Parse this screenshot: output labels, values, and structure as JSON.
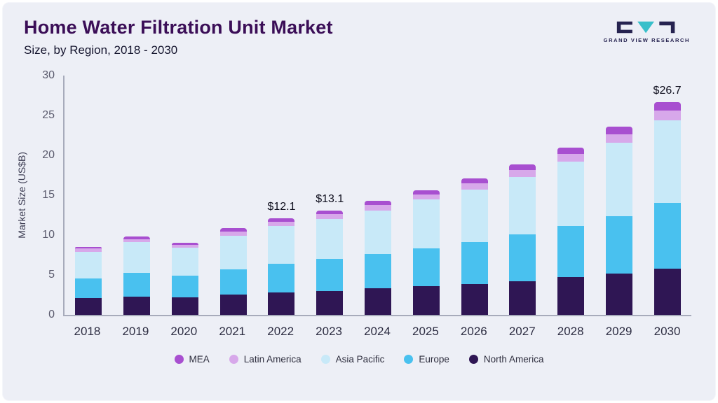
{
  "header": {
    "title": "Home Water Filtration Unit Market",
    "subtitle": "Size, by Region, 2018 - 2030",
    "logo_text": "GRAND VIEW RESEARCH"
  },
  "colors": {
    "background": "#edeff6",
    "title": "#3b0e57",
    "axis": "#a7abbb",
    "logo_dark": "#262350",
    "logo_teal": "#38bfca"
  },
  "chart_data": {
    "type": "bar",
    "stacked": true,
    "title": "Home Water Filtration Unit Market",
    "subtitle": "Size, by Region, 2018 - 2030",
    "xlabel": "",
    "ylabel": "Market Size (US$B)",
    "ylim": [
      0,
      30
    ],
    "yticks": [
      0,
      5,
      10,
      15,
      20,
      25,
      30
    ],
    "grid": false,
    "legend_position": "bottom",
    "categories": [
      "2018",
      "2019",
      "2020",
      "2021",
      "2022",
      "2023",
      "2024",
      "2025",
      "2026",
      "2027",
      "2028",
      "2029",
      "2030"
    ],
    "series": [
      {
        "name": "North America",
        "color": "#2f1654",
        "values": [
          2.1,
          2.3,
          2.2,
          2.5,
          2.8,
          3.0,
          3.3,
          3.6,
          3.9,
          4.2,
          4.7,
          5.2,
          5.8
        ]
      },
      {
        "name": "Europe",
        "color": "#49c1ef",
        "values": [
          2.5,
          3.0,
          2.7,
          3.2,
          3.6,
          4.0,
          4.3,
          4.7,
          5.2,
          5.9,
          6.4,
          7.2,
          8.2
        ]
      },
      {
        "name": "Asia Pacific",
        "color": "#c8e9f8",
        "values": [
          3.3,
          3.8,
          3.5,
          4.2,
          4.7,
          5.0,
          5.5,
          6.2,
          6.6,
          7.2,
          8.1,
          9.2,
          10.4
        ]
      },
      {
        "name": "Latin America",
        "color": "#d7a8ea",
        "values": [
          0.4,
          0.4,
          0.4,
          0.5,
          0.55,
          0.6,
          0.65,
          0.6,
          0.75,
          0.85,
          0.95,
          1.05,
          1.2
        ]
      },
      {
        "name": "MEA",
        "color": "#a84fd0",
        "values": [
          0.25,
          0.3,
          0.25,
          0.45,
          0.45,
          0.5,
          0.55,
          0.5,
          0.65,
          0.75,
          0.85,
          0.95,
          1.1
        ]
      }
    ],
    "annotations": [
      {
        "category": "2022",
        "text": "$12.1"
      },
      {
        "category": "2023",
        "text": "$13.1"
      },
      {
        "category": "2030",
        "text": "$26.7"
      }
    ],
    "legend_order": [
      "MEA",
      "Latin America",
      "Asia Pacific",
      "Europe",
      "North America"
    ]
  }
}
